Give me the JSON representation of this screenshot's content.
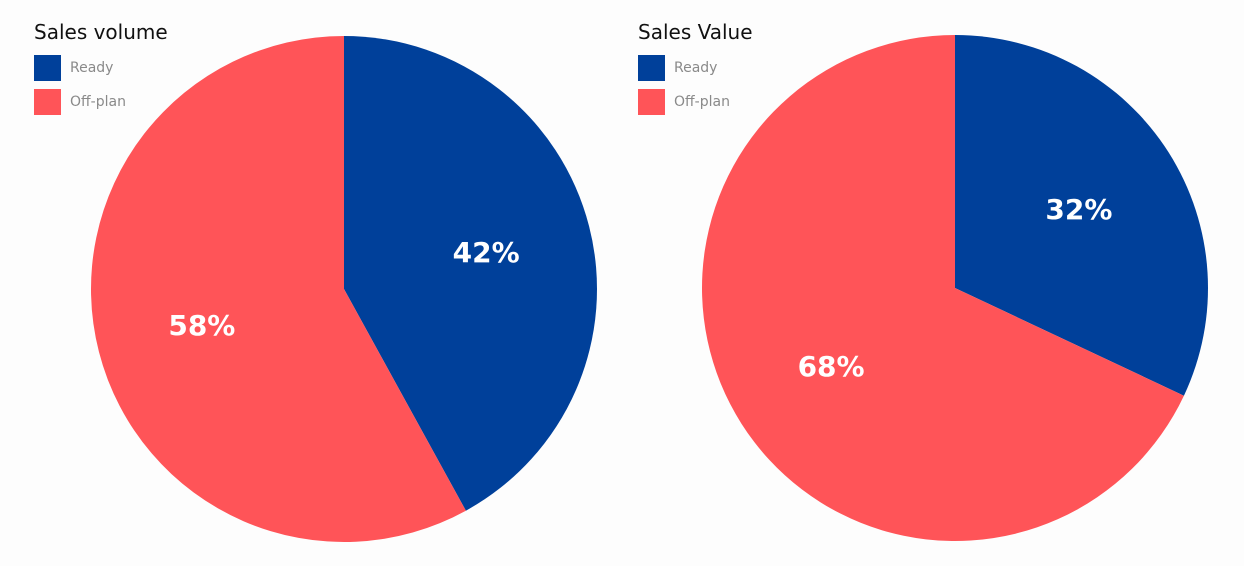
{
  "chart_data": [
    {
      "type": "pie",
      "title": "Sales volume",
      "categories": [
        "Ready",
        "Off-plan"
      ],
      "values": [
        42,
        58
      ],
      "data_labels": [
        "42%",
        "58%"
      ],
      "colors": [
        "#00409a",
        "#ff5458"
      ],
      "legend_position": "top-left"
    },
    {
      "type": "pie",
      "title": "Sales Value",
      "categories": [
        "Ready",
        "Off-plan"
      ],
      "values": [
        32,
        68
      ],
      "data_labels": [
        "32%",
        "68%"
      ],
      "colors": [
        "#00409a",
        "#ff5458"
      ],
      "legend_position": "top-left"
    }
  ]
}
